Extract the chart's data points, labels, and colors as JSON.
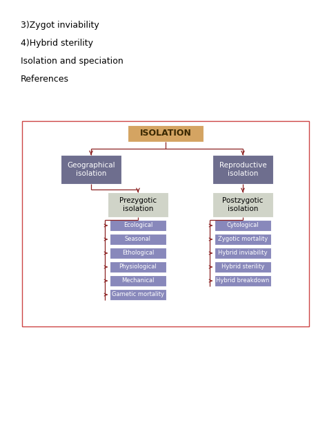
{
  "text_lines": [
    "3)Zygot inviability",
    "4)Hybrid sterility",
    "Isolation and speciation",
    "References"
  ],
  "isolation_label": "ISOLATION",
  "isolation_box_color": "#d4a462",
  "isolation_text_color": "#3a2800",
  "geo_label": "Geographical\nisolation",
  "repro_label": "Reproductive\nisolation",
  "level2_box_color": "#6e6e8e",
  "level2_text_color": "#ffffff",
  "prezygotic_label": "Prezygotic\nisolation",
  "postzygotic_label": "Postzygotic\nisolation",
  "level3_box_color": "#d0d4c8",
  "level3_text_color": "#000000",
  "prezygotic_items": [
    "Ecological",
    "Seasonal",
    "Ethological",
    "Physiological",
    "Mechanical",
    "Gametic mortality"
  ],
  "postzygotic_items": [
    "Cytological",
    "Zygotic mortality",
    "Hybrid inviability",
    "Hybrid sterility",
    "Hybrid breakdown"
  ],
  "leaf_box_color": "#8888bb",
  "leaf_text_color": "#ffffff",
  "arrow_color": "#8b2020",
  "border_color": "#cc4444",
  "background_color": "#ffffff"
}
